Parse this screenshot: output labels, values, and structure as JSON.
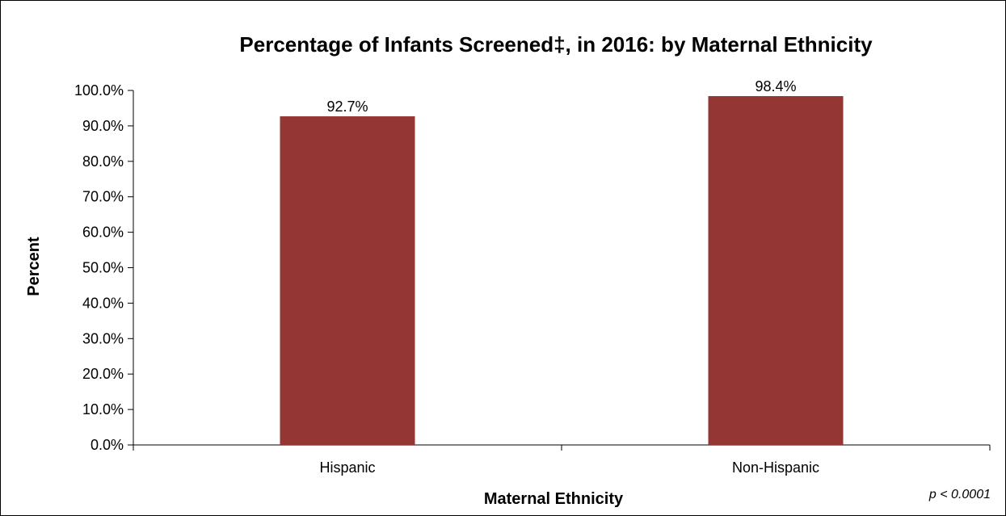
{
  "chart_data": {
    "type": "bar",
    "title": "Percentage of Infants Screened‡, in 2016: by Maternal Ethnicity",
    "xlabel": "Maternal Ethnicity",
    "ylabel": "Percent",
    "categories": [
      "Hispanic",
      "Non-Hispanic"
    ],
    "values": [
      92.7,
      98.4
    ],
    "data_labels": [
      "92.7%",
      "98.4%"
    ],
    "ylim": [
      0,
      100
    ],
    "ytick_values": [
      0,
      10,
      20,
      30,
      40,
      50,
      60,
      70,
      80,
      90,
      100
    ],
    "ytick_labels": [
      "0.0%",
      "10.0%",
      "20.0%",
      "30.0%",
      "40.0%",
      "50.0%",
      "60.0%",
      "70.0%",
      "80.0%",
      "90.0%",
      "100.0%"
    ],
    "bar_color": "#943634",
    "grid": false,
    "legend": "none",
    "annotation": "p < 0.0001"
  }
}
